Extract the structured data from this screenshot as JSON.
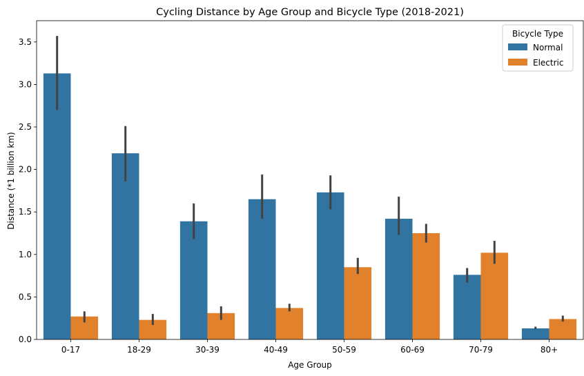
{
  "chart_data": {
    "type": "bar",
    "title": "Cycling Distance by Age Group and Bicycle Type (2018-2021)",
    "xlabel": "Age Group",
    "ylabel": "Distance (*1 billion km)",
    "categories": [
      "0-17",
      "18-29",
      "30-39",
      "40-49",
      "50-59",
      "60-69",
      "70-79",
      "80+"
    ],
    "ylim": [
      0,
      3.75
    ],
    "yticks": [
      "0.0",
      "0.5",
      "1.0",
      "1.5",
      "2.0",
      "2.5",
      "3.0",
      "3.5"
    ],
    "grid": false,
    "legend": {
      "title": "Bicycle Type",
      "placement": "top-right"
    },
    "series": [
      {
        "name": "Normal",
        "color": "#3274a1",
        "values": [
          3.13,
          2.19,
          1.39,
          1.65,
          1.73,
          1.42,
          0.76,
          0.13
        ],
        "error_low": [
          2.7,
          1.86,
          1.18,
          1.42,
          1.53,
          1.23,
          0.67,
          0.12
        ],
        "error_high": [
          3.57,
          2.51,
          1.6,
          1.94,
          1.93,
          1.68,
          0.84,
          0.15
        ]
      },
      {
        "name": "Electric",
        "color": "#e1812c",
        "values": [
          0.27,
          0.23,
          0.31,
          0.37,
          0.85,
          1.25,
          1.02,
          0.24
        ],
        "error_low": [
          0.2,
          0.17,
          0.23,
          0.33,
          0.77,
          1.14,
          0.89,
          0.21
        ],
        "error_high": [
          0.33,
          0.3,
          0.39,
          0.42,
          0.96,
          1.36,
          1.16,
          0.28
        ]
      }
    ],
    "error_bar_color": "#424242"
  }
}
